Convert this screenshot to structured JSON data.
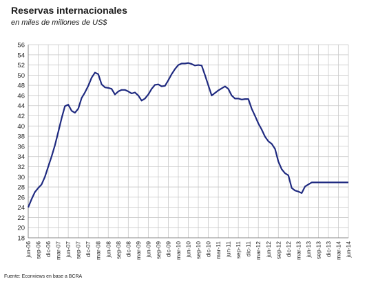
{
  "chart_data": {
    "type": "line",
    "title": "Reservas internacionales",
    "subtitle": "en miles de millones de US$",
    "source": "Fuente: Econviews en base a BCRA",
    "ylim": [
      18,
      56
    ],
    "yticks": [
      18,
      20,
      22,
      24,
      26,
      28,
      30,
      32,
      34,
      36,
      38,
      40,
      42,
      44,
      46,
      48,
      50,
      52,
      54,
      56
    ],
    "xticks": [
      "jun-06",
      "sep-06",
      "dic-06",
      "mar-07",
      "jun-07",
      "sep-07",
      "dic-07",
      "mar-08",
      "jun-08",
      "sep-08",
      "dic-08",
      "mar-09",
      "jun-09",
      "sep-09",
      "dic-09",
      "mar-10",
      "jun-10",
      "sep-10",
      "dic-10",
      "mar-11",
      "jun-11",
      "sep-11",
      "dic-11",
      "mar-12",
      "jun-12",
      "sep-12",
      "dic-12",
      "mar-13",
      "jun-13",
      "sep-13",
      "dic-13",
      "mar-14",
      "jun-14"
    ],
    "x_start": "jun-06",
    "x_end": "jun-14",
    "grid": true,
    "line_color": "#1f2a80",
    "series": [
      {
        "values": [
          24.0,
          25.6,
          27.0,
          27.8,
          28.5,
          30.0,
          32.0,
          34.0,
          36.2,
          38.8,
          41.5,
          43.9,
          44.2,
          43.0,
          42.6,
          43.4,
          45.5,
          46.6,
          47.9,
          49.5,
          50.5,
          50.2,
          48.2,
          47.6,
          47.5,
          47.3,
          46.2,
          46.8,
          47.1,
          47.1,
          46.8,
          46.4,
          46.6,
          46.0,
          45.0,
          45.4,
          46.2,
          47.3,
          48.1,
          48.2,
          47.8,
          47.9,
          49.0,
          50.2,
          51.2,
          52.0,
          52.3,
          52.3,
          52.4,
          52.2,
          51.9,
          52.0,
          51.9,
          50.0,
          48.0,
          46.0,
          46.5,
          47.0,
          47.4,
          47.8,
          47.3,
          46.0,
          45.4,
          45.4,
          45.2,
          45.3,
          45.3,
          43.4,
          42.0,
          40.5,
          39.3,
          37.9,
          37.0,
          36.5,
          35.5,
          33.0,
          31.5,
          30.7,
          30.3,
          27.8,
          27.3,
          27.1,
          26.8,
          28.1,
          28.5,
          28.9,
          28.9,
          28.9,
          28.9,
          28.9,
          28.9,
          28.9,
          28.9,
          28.9,
          28.9,
          28.9,
          28.9
        ]
      }
    ]
  }
}
